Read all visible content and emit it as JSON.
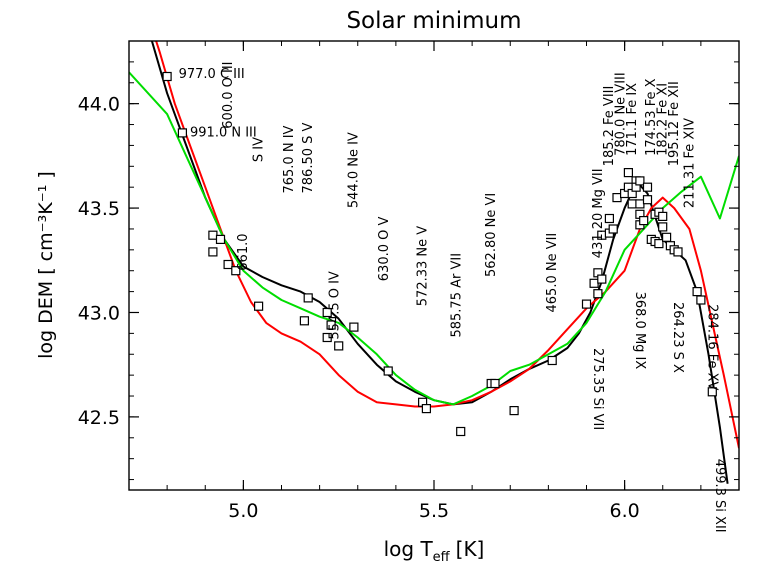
{
  "chart_data": {
    "type": "line",
    "title": "Solar minimum",
    "xlabel": "log T",
    "xlabel_sub": "eff",
    "xlabel_unit": "[K]",
    "ylabel": "log DEM [ cm⁻³K⁻¹ ]",
    "xlim": [
      4.7,
      6.3
    ],
    "ylim": [
      42.15,
      44.3
    ],
    "xticks": [
      5.0,
      5.5,
      6.0
    ],
    "xtick_labels": [
      "5.0",
      "5.5",
      "6.0"
    ],
    "yticks": [
      42.5,
      43.0,
      43.5,
      44.0
    ],
    "ytick_labels": [
      "42.5",
      "43.0",
      "43.5",
      "44.0"
    ],
    "grid": false,
    "legend": "none",
    "series": [
      {
        "color": "#000000",
        "points": [
          [
            4.7,
            44.6
          ],
          [
            4.76,
            44.3
          ],
          [
            4.8,
            44.05
          ],
          [
            4.85,
            43.8
          ],
          [
            4.9,
            43.55
          ],
          [
            4.95,
            43.35
          ],
          [
            5.0,
            43.22
          ],
          [
            5.05,
            43.17
          ],
          [
            5.1,
            43.13
          ],
          [
            5.15,
            43.1
          ],
          [
            5.2,
            43.05
          ],
          [
            5.25,
            42.97
          ],
          [
            5.3,
            42.85
          ],
          [
            5.35,
            42.75
          ],
          [
            5.4,
            42.67
          ],
          [
            5.45,
            42.62
          ],
          [
            5.5,
            42.58
          ],
          [
            5.55,
            42.56
          ],
          [
            5.6,
            42.57
          ],
          [
            5.65,
            42.62
          ],
          [
            5.7,
            42.68
          ],
          [
            5.75,
            42.73
          ],
          [
            5.8,
            42.77
          ],
          [
            5.85,
            42.83
          ],
          [
            5.88,
            42.9
          ],
          [
            5.91,
            43.0
          ],
          [
            5.94,
            43.15
          ],
          [
            5.97,
            43.35
          ],
          [
            6.0,
            43.5
          ],
          [
            6.02,
            43.58
          ],
          [
            6.04,
            43.61
          ],
          [
            6.06,
            43.57
          ],
          [
            6.08,
            43.46
          ],
          [
            6.1,
            43.35
          ],
          [
            6.13,
            43.3
          ],
          [
            6.16,
            43.25
          ],
          [
            6.19,
            43.1
          ],
          [
            6.22,
            42.8
          ],
          [
            6.25,
            42.45
          ],
          [
            6.27,
            42.18
          ]
        ]
      },
      {
        "color": "#ff0000",
        "points": [
          [
            4.7,
            44.7
          ],
          [
            4.78,
            44.25
          ],
          [
            4.82,
            44.0
          ],
          [
            4.86,
            43.8
          ],
          [
            4.9,
            43.6
          ],
          [
            4.94,
            43.4
          ],
          [
            4.98,
            43.2
          ],
          [
            5.02,
            43.05
          ],
          [
            5.06,
            42.95
          ],
          [
            5.1,
            42.9
          ],
          [
            5.15,
            42.86
          ],
          [
            5.2,
            42.8
          ],
          [
            5.25,
            42.7
          ],
          [
            5.3,
            42.62
          ],
          [
            5.35,
            42.57
          ],
          [
            5.4,
            42.56
          ],
          [
            5.45,
            42.55
          ],
          [
            5.5,
            42.55
          ],
          [
            5.55,
            42.56
          ],
          [
            5.6,
            42.58
          ],
          [
            5.65,
            42.62
          ],
          [
            5.7,
            42.67
          ],
          [
            5.75,
            42.73
          ],
          [
            5.8,
            42.82
          ],
          [
            5.85,
            42.92
          ],
          [
            5.9,
            43.02
          ],
          [
            5.95,
            43.1
          ],
          [
            6.0,
            43.2
          ],
          [
            6.04,
            43.4
          ],
          [
            6.07,
            43.5
          ],
          [
            6.1,
            43.55
          ],
          [
            6.13,
            43.5
          ],
          [
            6.17,
            43.4
          ],
          [
            6.2,
            43.2
          ],
          [
            6.23,
            42.95
          ],
          [
            6.26,
            42.7
          ],
          [
            6.3,
            42.35
          ]
        ]
      },
      {
        "color": "#00dd00",
        "points": [
          [
            4.7,
            44.15
          ],
          [
            4.8,
            43.95
          ],
          [
            4.85,
            43.75
          ],
          [
            4.9,
            43.55
          ],
          [
            4.95,
            43.35
          ],
          [
            5.0,
            43.2
          ],
          [
            5.05,
            43.12
          ],
          [
            5.1,
            43.06
          ],
          [
            5.15,
            43.02
          ],
          [
            5.2,
            42.98
          ],
          [
            5.25,
            42.95
          ],
          [
            5.3,
            42.88
          ],
          [
            5.35,
            42.8
          ],
          [
            5.4,
            42.7
          ],
          [
            5.45,
            42.63
          ],
          [
            5.5,
            42.58
          ],
          [
            5.55,
            42.56
          ],
          [
            5.6,
            42.6
          ],
          [
            5.65,
            42.65
          ],
          [
            5.7,
            42.72
          ],
          [
            5.75,
            42.75
          ],
          [
            5.8,
            42.8
          ],
          [
            5.85,
            42.85
          ],
          [
            5.9,
            42.95
          ],
          [
            5.95,
            43.1
          ],
          [
            6.0,
            43.3
          ],
          [
            6.05,
            43.4
          ],
          [
            6.1,
            43.5
          ],
          [
            6.15,
            43.58
          ],
          [
            6.2,
            43.65
          ],
          [
            6.25,
            43.45
          ],
          [
            6.3,
            43.75
          ]
        ]
      }
    ],
    "points": [
      {
        "x": 4.8,
        "y": 44.13
      },
      {
        "x": 4.84,
        "y": 43.86
      },
      {
        "x": 4.92,
        "y": 43.37
      },
      {
        "x": 4.92,
        "y": 43.29
      },
      {
        "x": 4.94,
        "y": 43.35
      },
      {
        "x": 4.96,
        "y": 43.23
      },
      {
        "x": 4.98,
        "y": 43.2
      },
      {
        "x": 5.04,
        "y": 43.03
      },
      {
        "x": 5.16,
        "y": 42.96
      },
      {
        "x": 5.17,
        "y": 43.07
      },
      {
        "x": 5.22,
        "y": 43.0
      },
      {
        "x": 5.22,
        "y": 42.88
      },
      {
        "x": 5.23,
        "y": 42.94
      },
      {
        "x": 5.25,
        "y": 42.84
      },
      {
        "x": 5.29,
        "y": 42.93
      },
      {
        "x": 5.38,
        "y": 42.72
      },
      {
        "x": 5.47,
        "y": 42.57
      },
      {
        "x": 5.48,
        "y": 42.54
      },
      {
        "x": 5.57,
        "y": 42.43
      },
      {
        "x": 5.65,
        "y": 42.66
      },
      {
        "x": 5.66,
        "y": 42.66
      },
      {
        "x": 5.71,
        "y": 42.53
      },
      {
        "x": 5.81,
        "y": 42.77
      },
      {
        "x": 5.9,
        "y": 43.04
      },
      {
        "x": 5.92,
        "y": 43.14
      },
      {
        "x": 5.93,
        "y": 43.09
      },
      {
        "x": 5.93,
        "y": 43.19
      },
      {
        "x": 5.94,
        "y": 43.16
      },
      {
        "x": 5.94,
        "y": 43.37
      },
      {
        "x": 5.96,
        "y": 43.38
      },
      {
        "x": 5.96,
        "y": 43.45
      },
      {
        "x": 5.97,
        "y": 43.4
      },
      {
        "x": 5.98,
        "y": 43.55
      },
      {
        "x": 6.0,
        "y": 43.57
      },
      {
        "x": 6.01,
        "y": 43.6
      },
      {
        "x": 6.01,
        "y": 43.67
      },
      {
        "x": 6.02,
        "y": 43.57
      },
      {
        "x": 6.02,
        "y": 43.52
      },
      {
        "x": 6.03,
        "y": 43.63
      },
      {
        "x": 6.03,
        "y": 43.6
      },
      {
        "x": 6.04,
        "y": 43.52
      },
      {
        "x": 6.04,
        "y": 43.47
      },
      {
        "x": 6.04,
        "y": 43.42
      },
      {
        "x": 6.04,
        "y": 43.63
      },
      {
        "x": 6.05,
        "y": 43.44
      },
      {
        "x": 6.06,
        "y": 43.6
      },
      {
        "x": 6.06,
        "y": 43.54
      },
      {
        "x": 6.07,
        "y": 43.35
      },
      {
        "x": 6.08,
        "y": 43.34
      },
      {
        "x": 6.08,
        "y": 43.47
      },
      {
        "x": 6.09,
        "y": 43.48
      },
      {
        "x": 6.09,
        "y": 43.33
      },
      {
        "x": 6.1,
        "y": 43.46
      },
      {
        "x": 6.1,
        "y": 43.41
      },
      {
        "x": 6.11,
        "y": 43.36
      },
      {
        "x": 6.12,
        "y": 43.32
      },
      {
        "x": 6.13,
        "y": 43.3
      },
      {
        "x": 6.14,
        "y": 43.29
      },
      {
        "x": 6.19,
        "y": 43.1
      },
      {
        "x": 6.2,
        "y": 43.06
      },
      {
        "x": 6.23,
        "y": 42.62
      }
    ],
    "annotations": [
      {
        "text": "977.0  C III",
        "x": 4.83,
        "y": 44.14,
        "rot": 0
      },
      {
        "text": "991.0  N III",
        "x": 4.86,
        "y": 43.86,
        "rot": 0
      },
      {
        "text": "600.0 O III",
        "x": 4.97,
        "y": 43.88,
        "rot": 90
      },
      {
        "text": "S IV",
        "x": 5.05,
        "y": 43.72,
        "rot": 90
      },
      {
        "text": "661.0",
        "x": 5.01,
        "y": 43.2,
        "rot": 90
      },
      {
        "text": "765.0 N IV",
        "x": 5.13,
        "y": 43.57,
        "rot": 90
      },
      {
        "text": "786.50 S V",
        "x": 5.18,
        "y": 43.57,
        "rot": 90
      },
      {
        "text": "544.0  Ne IV",
        "x": 5.3,
        "y": 43.5,
        "rot": 90
      },
      {
        "text": "554.5 O IV",
        "x": 5.25,
        "y": 42.87,
        "rot": 90
      },
      {
        "text": "630.0 O V",
        "x": 5.38,
        "y": 43.15,
        "rot": 90
      },
      {
        "text": "572.33 Ne V",
        "x": 5.48,
        "y": 43.03,
        "rot": 90
      },
      {
        "text": "585.75 Ar VII",
        "x": 5.57,
        "y": 42.88,
        "rot": 90
      },
      {
        "text": "562.80 Ne VI",
        "x": 5.66,
        "y": 43.17,
        "rot": 90
      },
      {
        "text": "465.0 Ne VII",
        "x": 5.82,
        "y": 43.0,
        "rot": 90
      },
      {
        "text": "431.20 Mg VII",
        "x": 5.94,
        "y": 43.26,
        "rot": 90
      },
      {
        "text": "185.2 Fe VIII",
        "x": 5.97,
        "y": 43.7,
        "rot": 90
      },
      {
        "text": "780.0 Ne VIII",
        "x": 6.0,
        "y": 43.75,
        "rot": 90
      },
      {
        "text": "171.1 Fe IX",
        "x": 6.03,
        "y": 43.75,
        "rot": 90
      },
      {
        "text": "174.53 Fe X",
        "x": 6.08,
        "y": 43.75,
        "rot": 90
      },
      {
        "text": "182.2 Fe XI",
        "x": 6.11,
        "y": 43.75,
        "rot": 90
      },
      {
        "text": "275.35 Si VII",
        "x": 5.92,
        "y": 42.83,
        "rot": -90
      },
      {
        "text": "368.0 Mg IX",
        "x": 6.03,
        "y": 43.1,
        "rot": -90
      },
      {
        "text": "195.12 Fe XII",
        "x": 6.14,
        "y": 43.7,
        "rot": 90
      },
      {
        "text": "264.23  S X",
        "x": 6.13,
        "y": 43.05,
        "rot": -90
      },
      {
        "text": "211.31 Fe XIV",
        "x": 6.18,
        "y": 43.5,
        "rot": 90
      },
      {
        "text": "284.16  Fe XV",
        "x": 6.22,
        "y": 43.04,
        "rot": -90
      },
      {
        "text": "499.3 Si XII",
        "x": 6.24,
        "y": 42.3,
        "rot": -90
      }
    ]
  }
}
